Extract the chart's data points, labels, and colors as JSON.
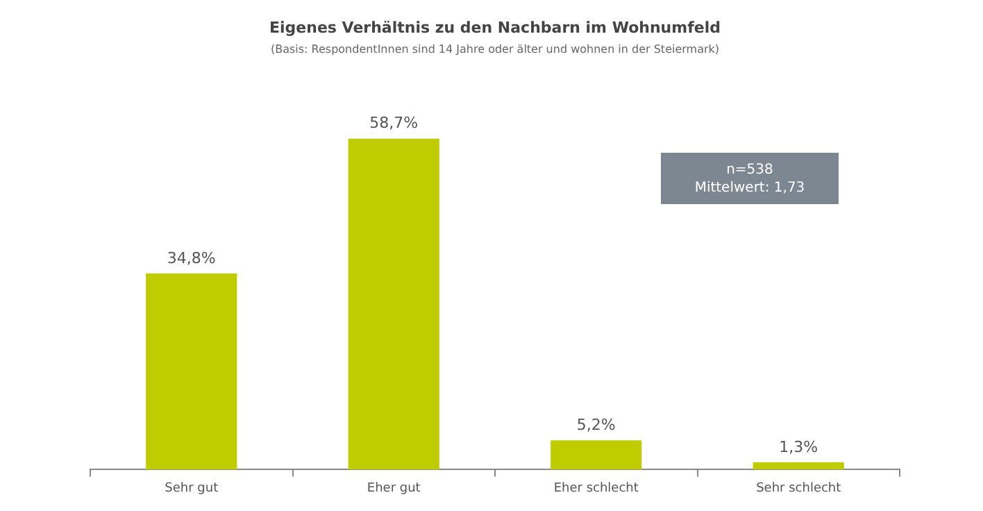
{
  "chart_data": {
    "type": "bar",
    "title": "Eigenes Verhältnis zu den Nachbarn im Wohnumfeld",
    "subtitle": "(Basis: RespondentInnen sind 14 Jahre oder älter und wohnen in der Steiermark)",
    "categories": [
      "Sehr gut",
      "Eher gut",
      "Eher schlecht",
      "Sehr schlecht"
    ],
    "values": [
      34.8,
      58.7,
      5.2,
      1.3
    ],
    "value_labels": [
      "34,8%",
      "58,7%",
      "5,2%",
      "1,3%"
    ],
    "color": "#bfcc00",
    "tick_labels": "x",
    "grid": false,
    "legend": false,
    "annotations": [
      "n=538\nMittelwert: 1,73"
    ]
  }
}
